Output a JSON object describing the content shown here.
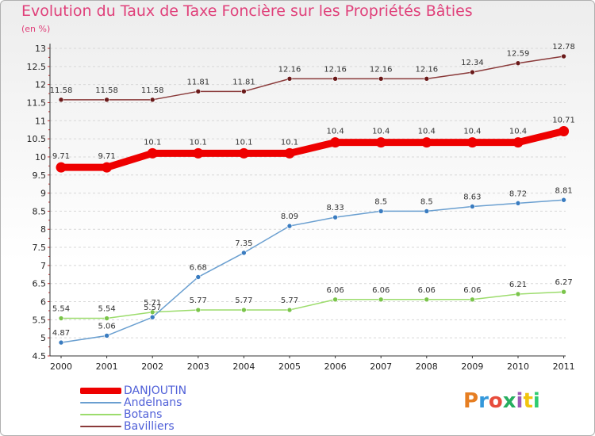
{
  "title": "Evolution du Taux de Taxe Foncière sur les Propriétés Bâties",
  "unit_label": "(en %)",
  "logo": {
    "text": "Proxiti",
    "colors": [
      "#e67e22",
      "#3498db",
      "#e74c3c",
      "#27ae60",
      "#9b59b6",
      "#f1c40f",
      "#2ecc71"
    ]
  },
  "chart_data": {
    "type": "line",
    "title": "Evolution du Taux de Taxe Foncière sur les Propriétés Bâties",
    "ylabel": "(en %)",
    "xlabel": "",
    "x": [
      "2000",
      "2001",
      "2002",
      "2003",
      "2004",
      "2005",
      "2006",
      "2007",
      "2008",
      "2009",
      "2010",
      "2011"
    ],
    "ylim": [
      4.5,
      13
    ],
    "yticks": [
      "4.5",
      "5",
      "5.5",
      "6",
      "6.5",
      "7",
      "7.5",
      "8",
      "8.5",
      "9",
      "9.5",
      "10",
      "10.5",
      "11",
      "11.5",
      "12",
      "12.5",
      "13"
    ],
    "grid": "horizontal dashed",
    "legend_position": "bottom-left",
    "series": [
      {
        "name": "DANJOUTIN",
        "color": "#ee0000",
        "emphasis": true,
        "values": [
          9.71,
          9.71,
          10.1,
          10.1,
          10.1,
          10.1,
          10.4,
          10.4,
          10.4,
          10.4,
          10.4,
          10.71
        ],
        "labels": [
          "9.71",
          "9.71",
          "10.1",
          "10.1",
          "10.1",
          "10.1",
          "10.4",
          "10.4",
          "10.4",
          "10.4",
          "10.4",
          "10.71"
        ]
      },
      {
        "name": "Andelnans",
        "color": "#6a9fd0",
        "marker": "#3a7cc0",
        "values": [
          4.87,
          5.06,
          5.57,
          6.68,
          7.35,
          8.09,
          8.33,
          8.5,
          8.5,
          8.63,
          8.72,
          8.81
        ],
        "labels": [
          "4.87",
          "5.06",
          "5.57",
          "6.68",
          "7.35",
          "8.09",
          "8.33",
          "8.5",
          "8.5",
          "8.63",
          "8.72",
          "8.81"
        ]
      },
      {
        "name": "Botans",
        "color": "#9cdc6c",
        "marker": "#7ac44a",
        "values": [
          5.54,
          5.54,
          5.71,
          5.77,
          5.77,
          5.77,
          6.06,
          6.06,
          6.06,
          6.06,
          6.21,
          6.27
        ],
        "labels": [
          "5.54",
          "5.54",
          "5.71",
          "5.77",
          "5.77",
          "5.77",
          "6.06",
          "6.06",
          "6.06",
          "6.06",
          "6.21",
          "6.27"
        ]
      },
      {
        "name": "Bavilliers",
        "color": "#8a3a3a",
        "marker": "#6a1a1a",
        "values": [
          11.58,
          11.58,
          11.58,
          11.81,
          11.81,
          12.16,
          12.16,
          12.16,
          12.16,
          12.34,
          12.59,
          12.78
        ],
        "labels": [
          "11.58",
          "11.58",
          "11.58",
          "11.81",
          "11.81",
          "12.16",
          "12.16",
          "12.16",
          "12.16",
          "12.34",
          "12.59",
          "12.78"
        ]
      }
    ]
  }
}
